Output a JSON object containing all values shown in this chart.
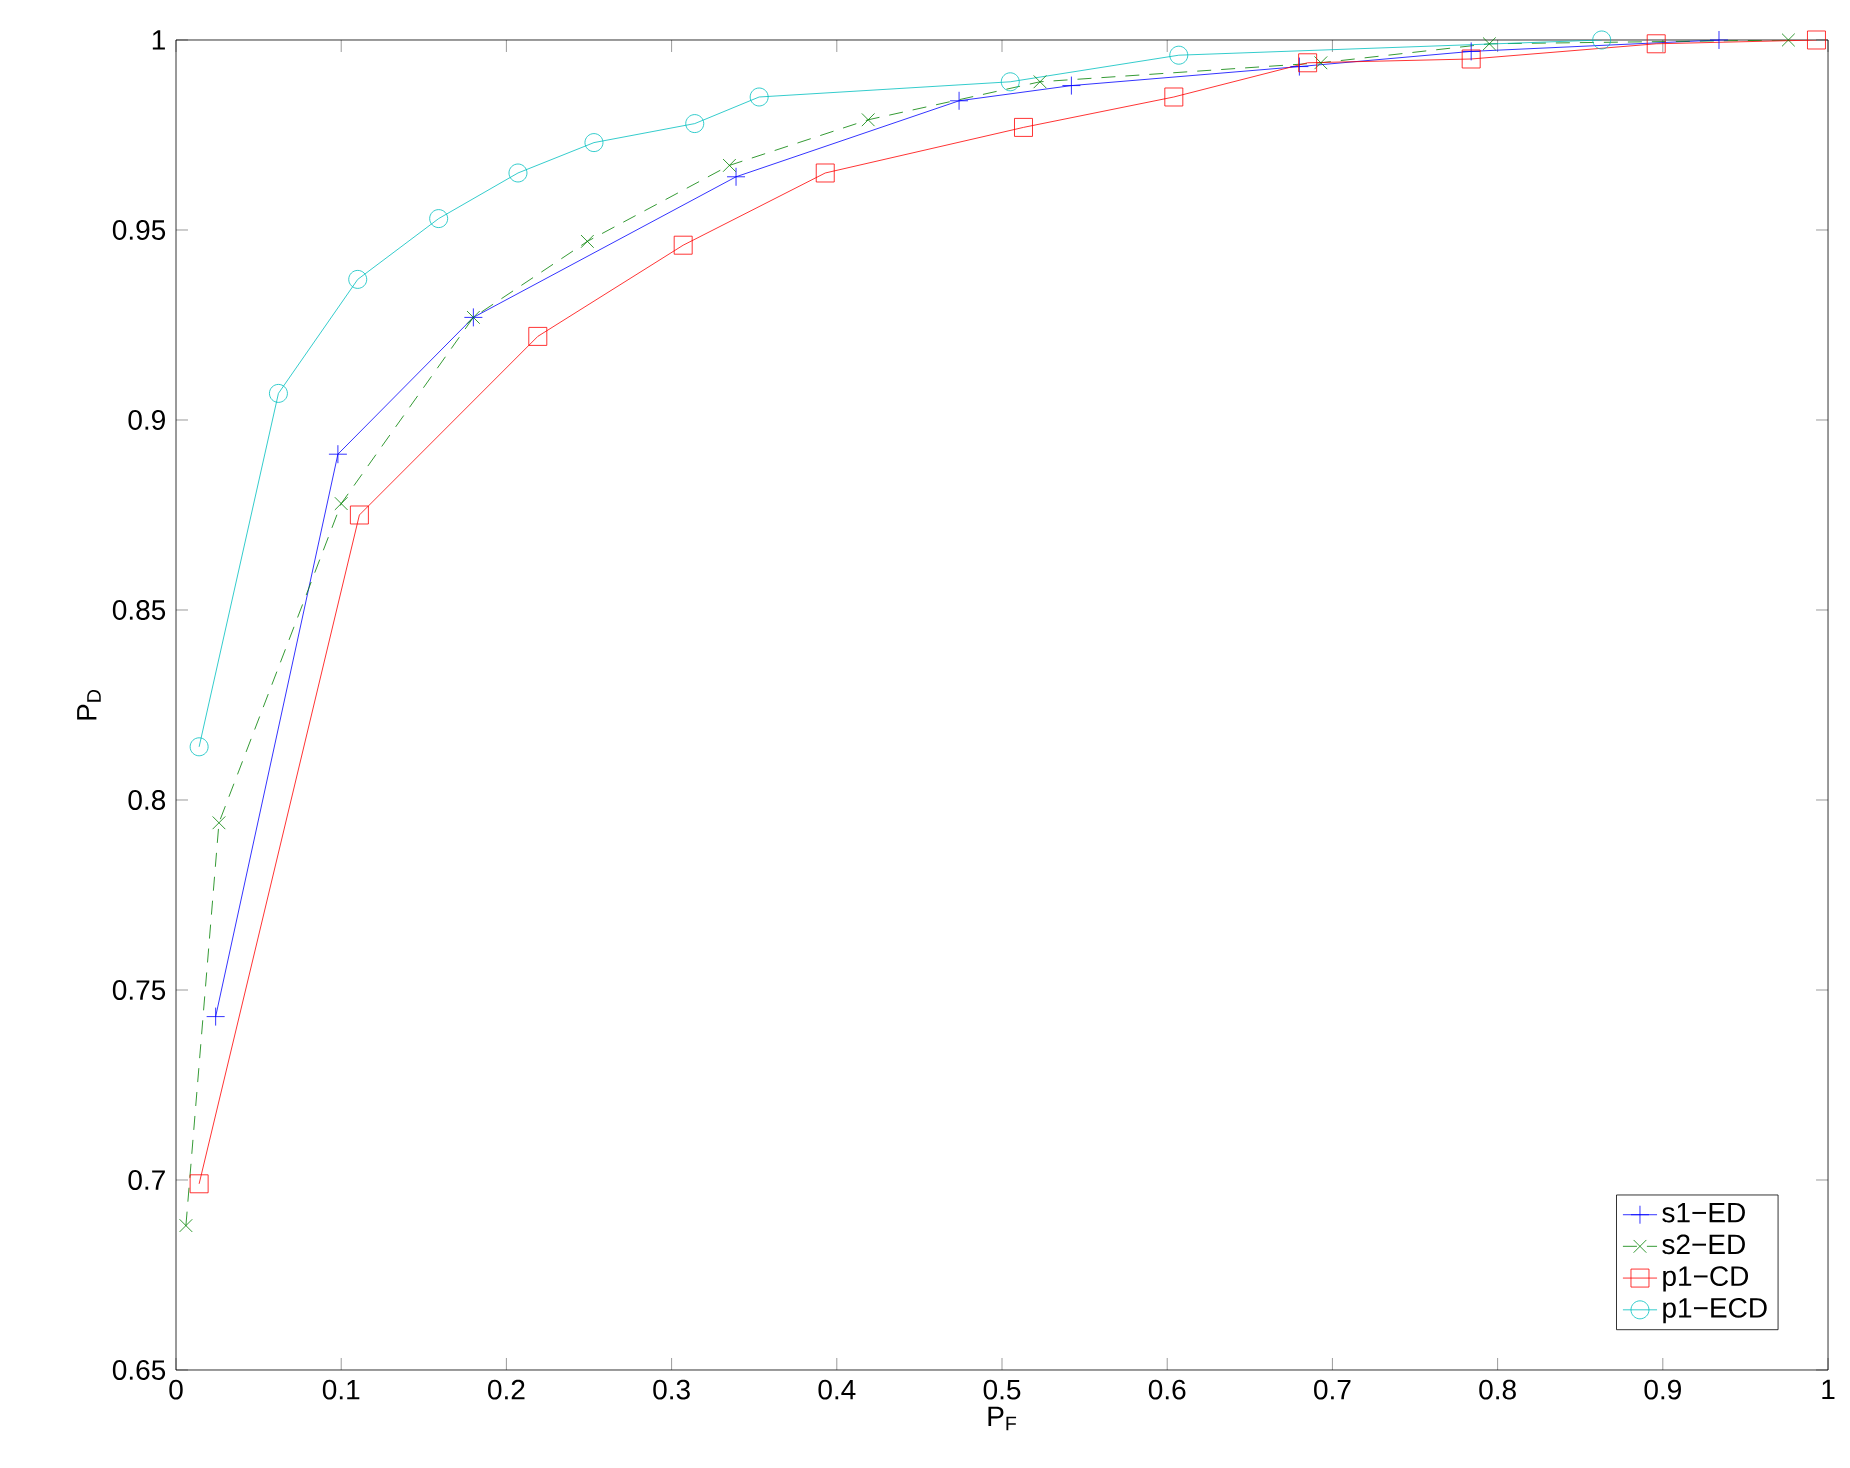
{
  "chart_data": {
    "type": "line",
    "xlabel": "P$_{F}$",
    "ylabel": "P$_{D}$",
    "xlim": [
      0,
      1
    ],
    "ylim": [
      0.65,
      1
    ],
    "xticks": [
      0,
      0.1,
      0.2,
      0.3,
      0.4,
      0.5,
      0.6,
      0.7,
      0.8,
      0.9,
      1
    ],
    "yticks": [
      0.65,
      0.7,
      0.75,
      0.8,
      0.85,
      0.9,
      0.95,
      1
    ],
    "grid": false,
    "legend": "bottom right",
    "series": [
      {
        "name": "s1−ED",
        "color": "#0000ff",
        "marker": "cross",
        "line_style": "solid",
        "x": [
          0.024,
          0.098,
          0.18,
          0.339,
          0.474,
          0.542,
          0.68,
          0.784,
          0.934
        ],
        "values": [
          0.743,
          0.891,
          0.927,
          0.964,
          0.984,
          0.988,
          0.993,
          0.997,
          1.0
        ]
      },
      {
        "name": "s2−ED",
        "color": "#008000",
        "marker": "x",
        "line_style": "dashed",
        "x": [
          0.006,
          0.026,
          0.1,
          0.18,
          0.249,
          0.335,
          0.419,
          0.523,
          0.693,
          0.795,
          0.976
        ],
        "values": [
          0.688,
          0.794,
          0.878,
          0.927,
          0.947,
          0.967,
          0.979,
          0.989,
          0.994,
          0.999,
          1.0
        ]
      },
      {
        "name": "p1−CD",
        "color": "#ff0000",
        "marker": "square",
        "line_style": "solid",
        "x": [
          0.014,
          0.111,
          0.219,
          0.307,
          0.393,
          0.513,
          0.604,
          0.685,
          0.784,
          0.896,
          0.993
        ],
        "values": [
          0.699,
          0.875,
          0.922,
          0.946,
          0.965,
          0.977,
          0.985,
          0.994,
          0.995,
          0.999,
          1.0
        ]
      },
      {
        "name": "p1−ECD",
        "color": "#00bfbf",
        "marker": "circle",
        "line_style": "solid",
        "x": [
          0.014,
          0.062,
          0.11,
          0.159,
          0.207,
          0.253,
          0.314,
          0.353,
          0.505,
          0.607,
          0.863
        ],
        "values": [
          0.814,
          0.907,
          0.937,
          0.953,
          0.965,
          0.973,
          0.978,
          0.985,
          0.989,
          0.996,
          1.0
        ]
      }
    ]
  }
}
